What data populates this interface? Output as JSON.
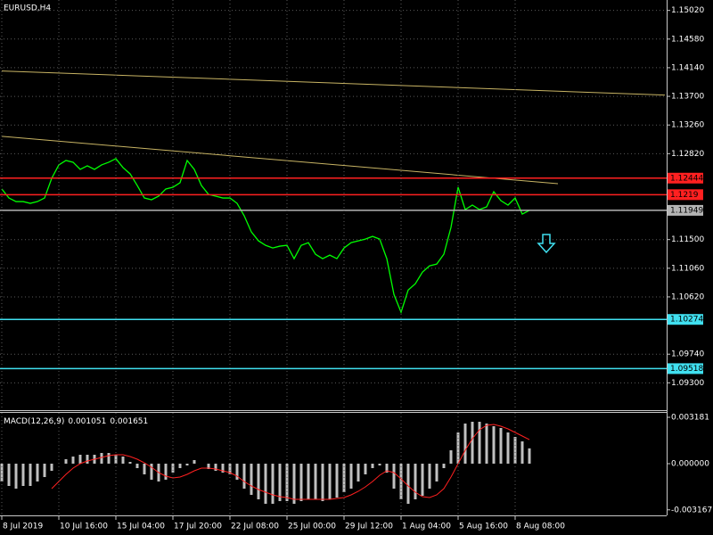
{
  "chart_data": [
    {
      "type": "line",
      "title": "EURUSD,H4",
      "color": "#00ff00",
      "categories": [
        "8 Jul 2019",
        null,
        null,
        null,
        null,
        null,
        null,
        null,
        "10 Jul 16:00",
        null,
        null,
        null,
        null,
        null,
        null,
        null,
        "15 Jul 04:00",
        null,
        null,
        null,
        null,
        null,
        null,
        null,
        "17 Jul 20:00",
        null,
        null,
        null,
        null,
        null,
        null,
        null,
        "22 Jul 08:00",
        null,
        null,
        null,
        null,
        null,
        null,
        null,
        "25 Jul 00:00",
        null,
        null,
        null,
        null,
        null,
        null,
        null,
        "29 Jul 12:00",
        null,
        null,
        null,
        null,
        null,
        null,
        null,
        "1 Aug 04:00",
        null,
        null,
        null,
        null,
        null,
        null,
        null,
        "5 Aug 16:00",
        null,
        null,
        null,
        null,
        null,
        null,
        null,
        "8 Aug 08:00",
        null,
        null
      ],
      "values": [
        1.12277,
        1.12139,
        1.12084,
        1.12084,
        1.12057,
        1.12084,
        1.12139,
        1.12441,
        1.12647,
        1.12715,
        1.12688,
        1.12578,
        1.12633,
        1.12578,
        1.12647,
        1.12688,
        1.12743,
        1.12606,
        1.1251,
        1.12331,
        1.12139,
        1.12112,
        1.12167,
        1.12277,
        1.12304,
        1.12373,
        1.12715,
        1.12578,
        1.12331,
        1.12194,
        1.12167,
        1.12139,
        1.12139,
        1.12057,
        1.11865,
        1.11618,
        1.11481,
        1.11412,
        1.11371,
        1.11399,
        1.11412,
        1.11207,
        1.11412,
        1.11453,
        1.11275,
        1.11207,
        1.11261,
        1.11207,
        1.11371,
        1.11453,
        1.11481,
        1.11508,
        1.11549,
        1.11508,
        1.11207,
        1.10658,
        1.10383,
        1.10726,
        1.10822,
        1.11001,
        1.11097,
        1.11124,
        1.11275,
        1.11687,
        1.12304,
        1.11961,
        1.1203,
        1.11961,
        1.12002,
        1.12235,
        1.12098,
        1.1203,
        1.12139,
        1.11892,
        1.11949
      ],
      "ylim": [
        1.0888,
        1.1518
      ],
      "yticks": [
        {
          "value": 1.1502,
          "label": "1.15020"
        },
        {
          "value": 1.1458,
          "label": "1.14580"
        },
        {
          "value": 1.1414,
          "label": "1.14140"
        },
        {
          "value": 1.137,
          "label": "1.13700"
        },
        {
          "value": 1.1326,
          "label": "1.13260"
        },
        {
          "value": 1.1282,
          "label": "1.12820"
        },
        {
          "value": 1.115,
          "label": "1.11500"
        },
        {
          "value": 1.1106,
          "label": "1.11060"
        },
        {
          "value": 1.1062,
          "label": "1.10620"
        },
        {
          "value": 1.0974,
          "label": "1.09740"
        },
        {
          "value": 1.093,
          "label": "1.09300"
        }
      ],
      "grid": true,
      "levels": [
        {
          "value": 1.12444,
          "color": "#ff2020"
        },
        {
          "value": 1.1219,
          "color": "#ff2020"
        },
        {
          "value": 1.11949,
          "color": "#b4b4b4"
        },
        {
          "value": 1.10274,
          "color": "#40e0f0"
        },
        {
          "value": 1.09518,
          "color": "#40e0f0"
        }
      ],
      "trendlines": [
        {
          "color": "#c8b464",
          "x": [
            0,
            93
          ],
          "values": [
            1.1409,
            1.1372
          ]
        },
        {
          "color": "#c8b464",
          "x": [
            0,
            78
          ],
          "values": [
            1.13086,
            1.12359
          ]
        }
      ]
    },
    {
      "type": "macd",
      "title": "MACD(12,26,9)",
      "current": [
        0.001051,
        0.001651
      ],
      "histogram": {
        "color": "#c0c0c0",
        "values": [
          -0.001223,
          -0.001529,
          -0.001713,
          -0.001529,
          -0.001529,
          -0.001223,
          -0.000918,
          -0.000489,
          0,
          0.000306,
          0.000489,
          0.000612,
          0.000612,
          0.000612,
          0.000734,
          0.000734,
          0.000612,
          0.000489,
          0.000122,
          -0.000306,
          -0.000734,
          -0.001101,
          -0.001223,
          -0.001101,
          -0.000612,
          -0.000306,
          -0.000122,
          0.000245,
          0,
          -0.000367,
          -0.000489,
          -0.000612,
          -0.000734,
          -0.001101,
          -0.001713,
          -0.002141,
          -0.002447,
          -0.002753,
          -0.002753,
          -0.002569,
          -0.002569,
          -0.002753,
          -0.002569,
          -0.002447,
          -0.002447,
          -0.002569,
          -0.002447,
          -0.002325,
          -0.001958,
          -0.001713,
          -0.001223,
          -0.000734,
          -0.000306,
          -0.000122,
          -0.000612,
          -0.001713,
          -0.002447,
          -0.002753,
          -0.002447,
          -0.002202,
          -0.001713,
          -0.001223,
          -0.000306,
          0.000918,
          0.002141,
          0.002753,
          0.002875,
          0.002875,
          0.002753,
          0.002569,
          0.002447,
          0.002141,
          0.001835,
          0.001529,
          0.001051
        ]
      },
      "signal": {
        "color": "#ff2020",
        "values": [
          null,
          null,
          null,
          null,
          null,
          null,
          null,
          -0.001713,
          -0.001223,
          -0.000734,
          -0.000306,
          0,
          0.000184,
          0.000306,
          0.000428,
          0.000551,
          0.000612,
          0.000612,
          0.000489,
          0.000306,
          6.1e-05,
          -0.000245,
          -0.000612,
          -0.000856,
          -0.000979,
          -0.000918,
          -0.000734,
          -0.000489,
          -0.000306,
          -0.000306,
          -0.000367,
          -0.000489,
          -0.000612,
          -0.000856,
          -0.001223,
          -0.001529,
          -0.001774,
          -0.001958,
          -0.002141,
          -0.002263,
          -0.002325,
          -0.002447,
          -0.002447,
          -0.002447,
          -0.002447,
          -0.002447,
          -0.002447,
          -0.002386,
          -0.002325,
          -0.002141,
          -0.001896,
          -0.00159,
          -0.001223,
          -0.000795,
          -0.000489,
          -0.000612,
          -0.00104,
          -0.001529,
          -0.001958,
          -0.002263,
          -0.002325,
          -0.002141,
          -0.001713,
          -0.000918,
          0,
          0.000918,
          0.001713,
          0.002325,
          0.00263,
          0.002692,
          0.002569,
          0.002386,
          0.002141,
          0.001896,
          0.001651
        ]
      },
      "ylim": [
        -0.003548,
        0.003487
      ],
      "yticks": [
        0.003181,
        {
          "value": 0,
          "label": "0.000000"
        },
        -0.003167
      ]
    }
  ]
}
